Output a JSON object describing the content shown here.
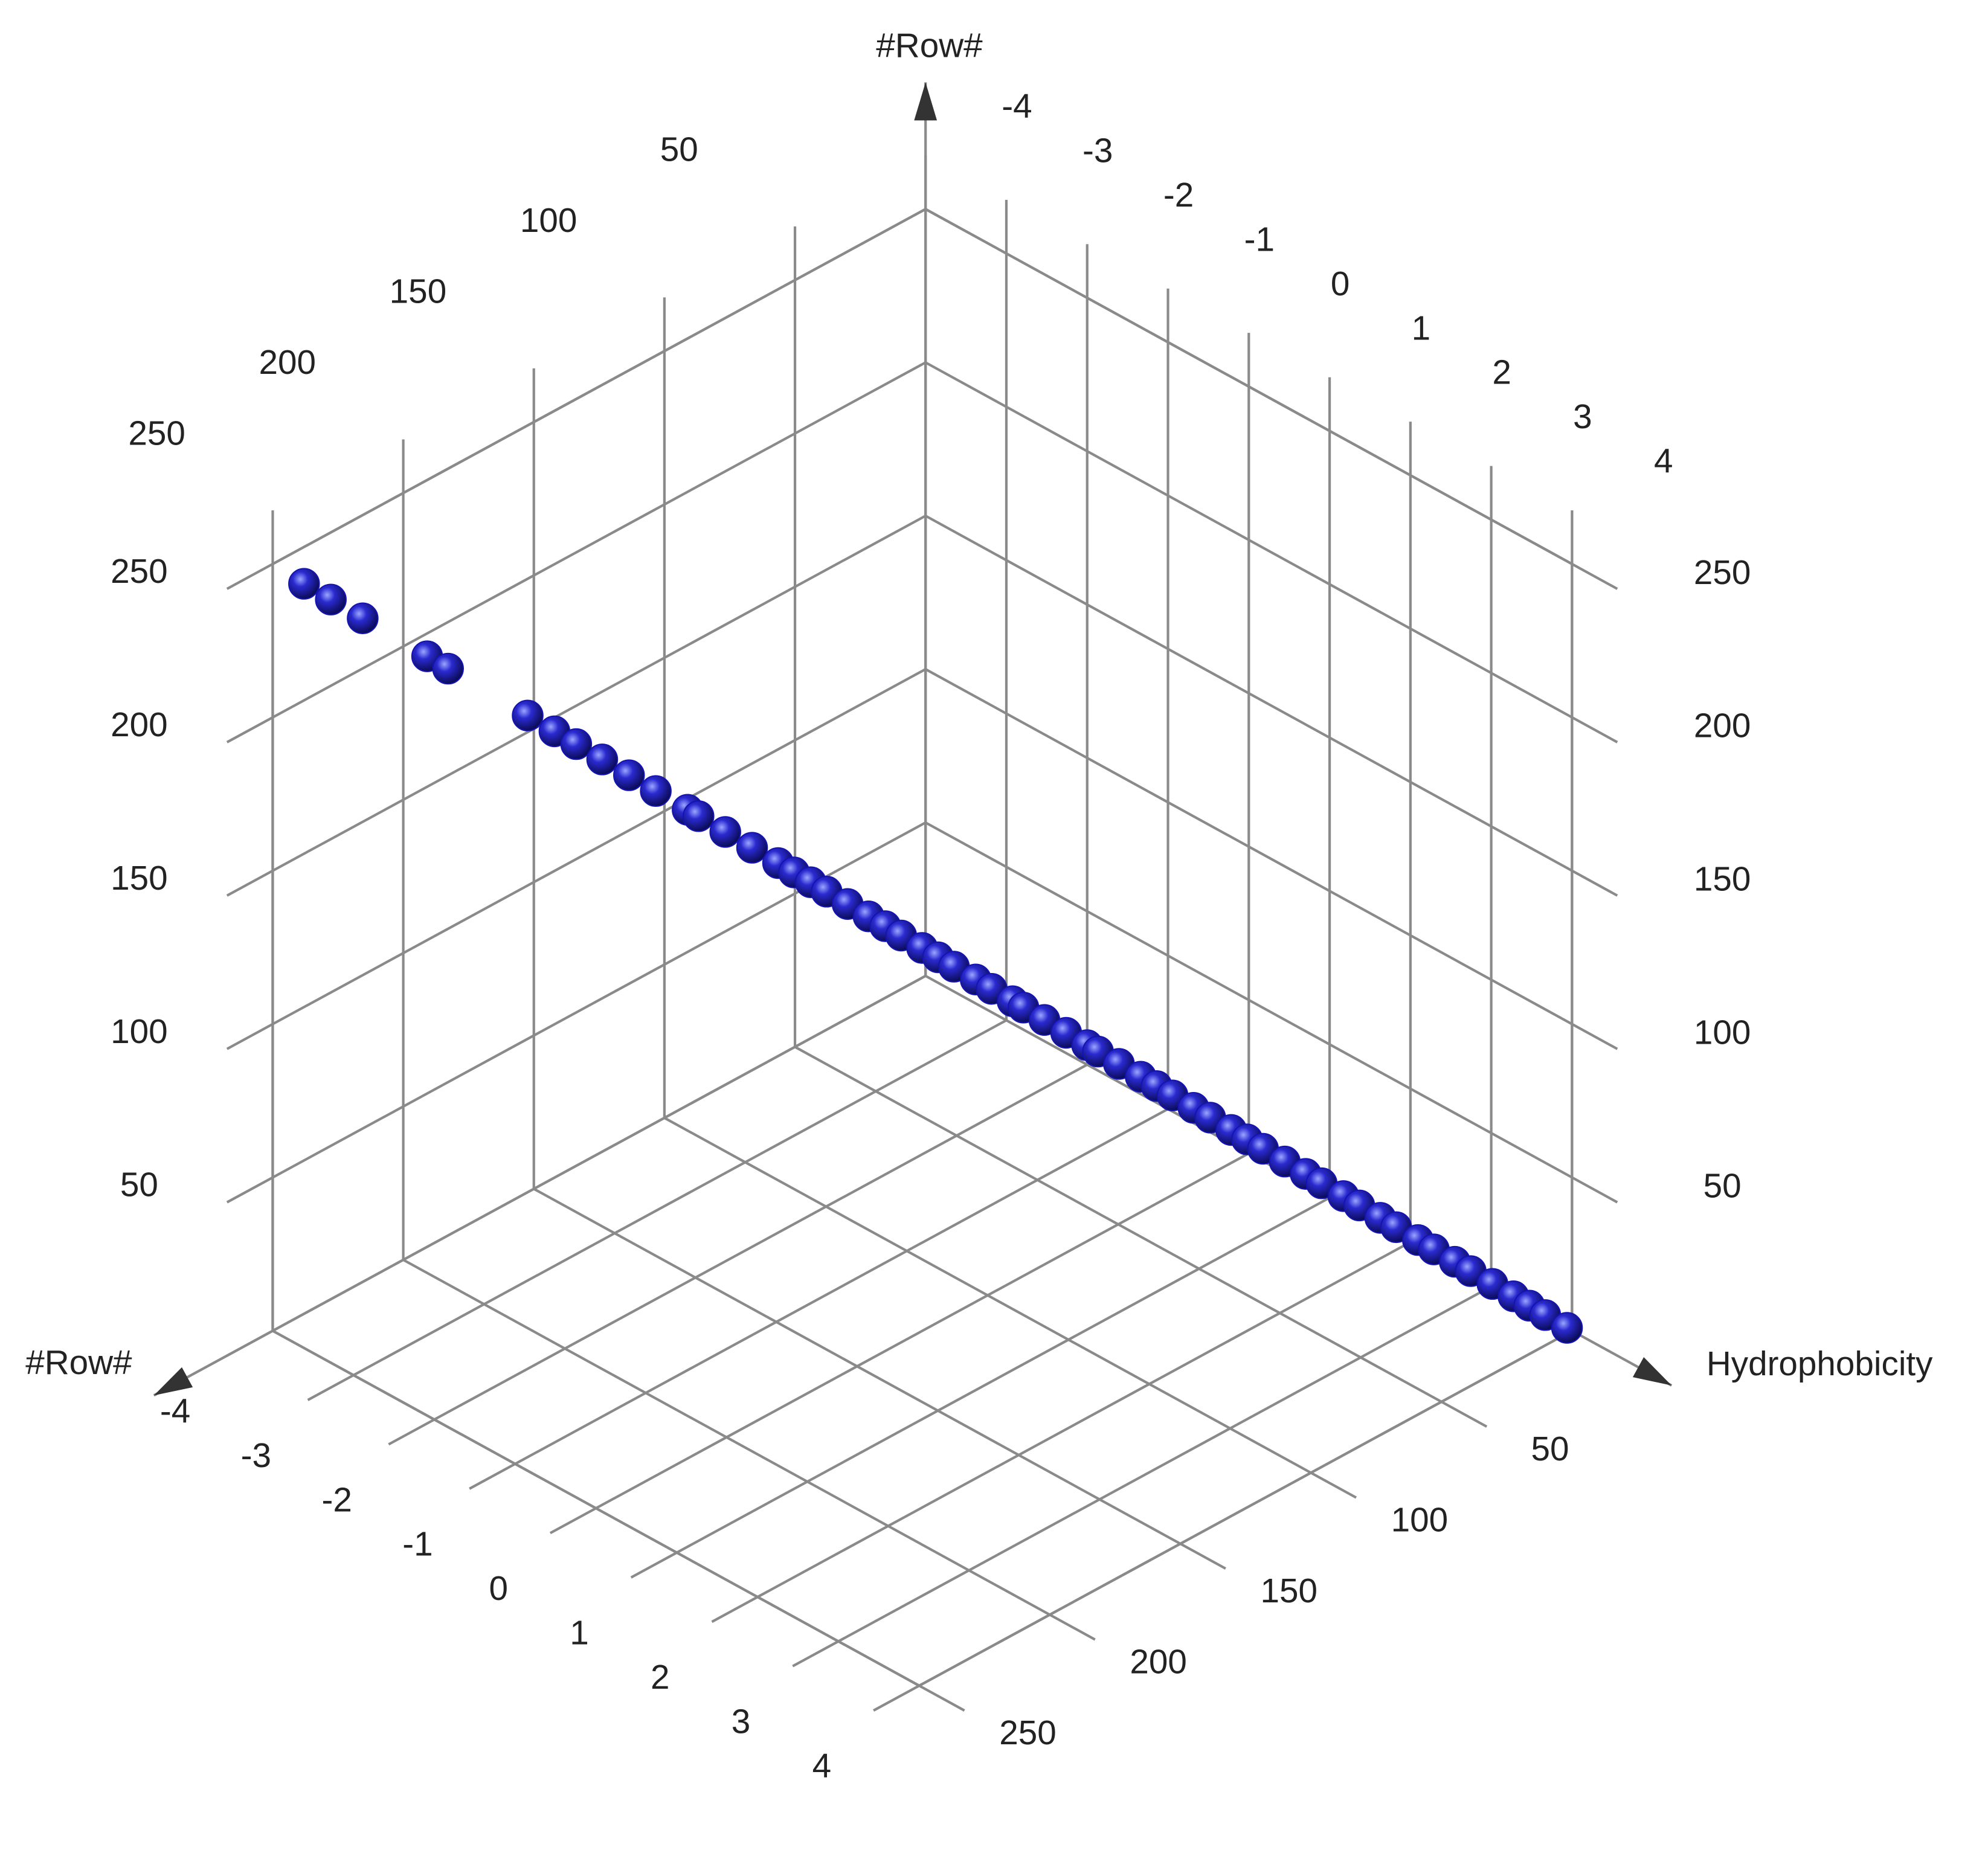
{
  "chart_data": {
    "type": "scatter3d",
    "x_label": "Hydrophobicity",
    "y_label": "#Row#",
    "z_label": "#Row#",
    "xlim": [
      0,
      250
    ],
    "ylim": [
      -4,
      4
    ],
    "zlim": [
      0,
      250
    ],
    "xticks": [
      50,
      100,
      150,
      200,
      250
    ],
    "yticks": [
      -4,
      -3,
      -2,
      -1,
      0,
      1,
      2,
      3,
      4
    ],
    "zticks": [
      50,
      100,
      150,
      200,
      250
    ],
    "grid": true,
    "series": [
      {
        "color": "#1414b4",
        "x": [
          238,
          233,
          227,
          215,
          211,
          196,
          191,
          187,
          182,
          177,
          172,
          166,
          164,
          159,
          154,
          149,
          146,
          143,
          140,
          136,
          132,
          129,
          126,
          122,
          119,
          116,
          112,
          109,
          105,
          103,
          99,
          95,
          91,
          89,
          85,
          81,
          78,
          75,
          71,
          68,
          64,
          61,
          58,
          54,
          50,
          47,
          43,
          40,
          36,
          33,
          29,
          26,
          22,
          19,
          15,
          11,
          8,
          5,
          1
        ],
        "y": [
          -4.0,
          -3.83,
          -3.63,
          -3.22,
          -3.09,
          -2.59,
          -2.42,
          -2.28,
          -2.12,
          -1.95,
          -1.78,
          -1.58,
          -1.51,
          -1.34,
          -1.17,
          -1.01,
          -0.91,
          -0.8,
          -0.7,
          -0.57,
          -0.44,
          -0.33,
          -0.23,
          -0.1,
          0.0,
          0.1,
          0.24,
          0.34,
          0.47,
          0.54,
          0.67,
          0.81,
          0.94,
          1.01,
          1.14,
          1.28,
          1.38,
          1.48,
          1.61,
          1.72,
          1.85,
          1.95,
          2.05,
          2.19,
          2.32,
          2.42,
          2.56,
          2.66,
          2.79,
          2.89,
          3.03,
          3.13,
          3.26,
          3.36,
          3.5,
          3.63,
          3.73,
          3.83,
          3.97
        ],
        "z": [
          238,
          233,
          227,
          215,
          211,
          196,
          191,
          187,
          182,
          177,
          172,
          166,
          164,
          159,
          154,
          149,
          146,
          143,
          140,
          136,
          132,
          129,
          126,
          122,
          119,
          116,
          112,
          109,
          105,
          103,
          99,
          95,
          91,
          89,
          85,
          81,
          78,
          75,
          71,
          68,
          64,
          61,
          58,
          54,
          50,
          47,
          43,
          40,
          36,
          33,
          29,
          26,
          22,
          19,
          15,
          11,
          8,
          5,
          1
        ]
      }
    ]
  }
}
